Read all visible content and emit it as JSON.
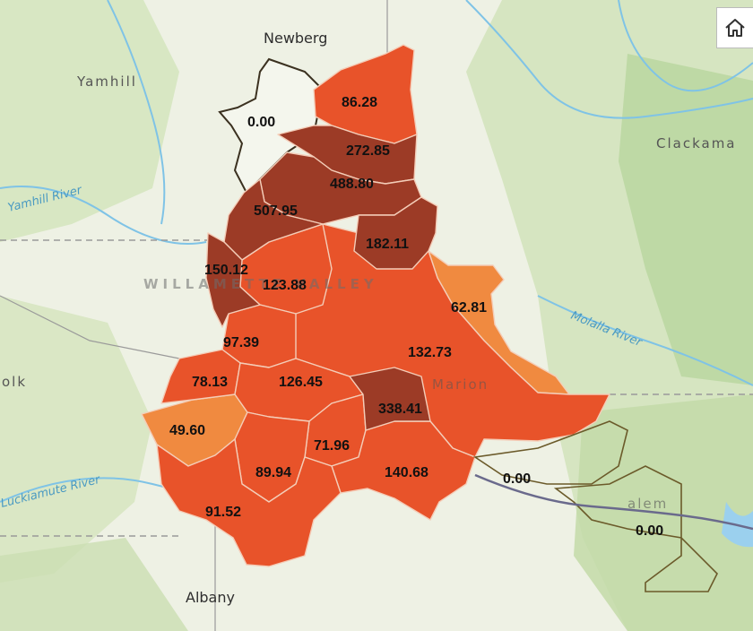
{
  "colors": {
    "background": "#eef1e4",
    "class_1": "#f08a40",
    "class_2": "#e8532a",
    "class_3": "#9c3b26",
    "boundary": "#3b3120",
    "river": "#7fc3e6"
  },
  "places": [
    {
      "id": "newberg",
      "label": "Newberg"
    },
    {
      "id": "yamhill",
      "label": "Yamhill"
    },
    {
      "id": "clackamas",
      "label": "Clackama"
    },
    {
      "id": "albany",
      "label": "Albany"
    },
    {
      "id": "polk",
      "label": "olk"
    },
    {
      "id": "marion",
      "label": "Marion"
    },
    {
      "id": "salem",
      "label": "alem"
    },
    {
      "id": "valley",
      "label": "WILLAMETTE VALLEY"
    }
  ],
  "rivers": [
    {
      "id": "yamhill-river",
      "label": "Yamhill River"
    },
    {
      "id": "molalla-river",
      "label": "Molalla River"
    },
    {
      "id": "luckiamute-river",
      "label": "Luckiamute River"
    }
  ],
  "zones": [
    {
      "id": "z1",
      "value": "86.28"
    },
    {
      "id": "z2",
      "value": "0.00"
    },
    {
      "id": "z3",
      "value": "272.85"
    },
    {
      "id": "z4",
      "value": "488.80"
    },
    {
      "id": "z5",
      "value": "507.95"
    },
    {
      "id": "z6",
      "value": "182.11"
    },
    {
      "id": "z7",
      "value": "150.12"
    },
    {
      "id": "z8",
      "value": "123.88"
    },
    {
      "id": "z9",
      "value": "62.81"
    },
    {
      "id": "z10",
      "value": "97.39"
    },
    {
      "id": "z11",
      "value": "132.73"
    },
    {
      "id": "z12",
      "value": "78.13"
    },
    {
      "id": "z13",
      "value": "126.45"
    },
    {
      "id": "z14",
      "value": "338.41"
    },
    {
      "id": "z15",
      "value": "49.60"
    },
    {
      "id": "z16",
      "value": "71.96"
    },
    {
      "id": "z17",
      "value": "89.94"
    },
    {
      "id": "z18",
      "value": "140.68"
    },
    {
      "id": "z19",
      "value": "91.52"
    },
    {
      "id": "z20",
      "value": "0.00"
    },
    {
      "id": "z21",
      "value": "0.00"
    }
  ],
  "controls": {
    "home_icon": "home-icon"
  }
}
